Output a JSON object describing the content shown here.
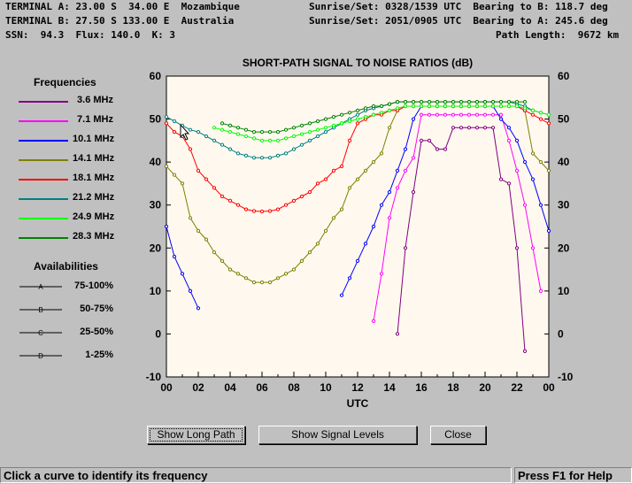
{
  "header": {
    "line1_left": "TERMINAL A: 23.00 S  34.00 E  Mozambique",
    "line2_left": "TERMINAL B: 27.50 S 133.00 E  Australia",
    "line3_left": "SSN:  94.3  Flux: 140.0  K: 3",
    "line1_right": "Sunrise/Set: 0328/1539 UTC  Bearing to B: 118.7 deg",
    "line2_right": "Sunrise/Set: 2051/0905 UTC  Bearing to A: 245.6 deg",
    "line3_right": "Path Length:  9672 km"
  },
  "legend": {
    "frequencies_title": "Frequencies",
    "availabilities_title": "Availabilities",
    "frequencies": [
      {
        "label": "3.6 MHz",
        "color": "#800080"
      },
      {
        "label": "7.1 MHz",
        "color": "#ff00ff"
      },
      {
        "label": "10.1 MHz",
        "color": "#0000ff"
      },
      {
        "label": "14.1 MHz",
        "color": "#808000"
      },
      {
        "label": "18.1 MHz",
        "color": "#ff0000"
      },
      {
        "label": "21.2 MHz",
        "color": "#008080"
      },
      {
        "label": "24.9 MHz",
        "color": "#00ff00"
      },
      {
        "label": "28.3 MHz",
        "color": "#008000"
      }
    ],
    "availabilities": [
      {
        "label": "75-100%",
        "marker": "A"
      },
      {
        "label": "50-75%",
        "marker": "B"
      },
      {
        "label": "25-50%",
        "marker": "C"
      },
      {
        "label": "1-25%",
        "marker": "D"
      }
    ]
  },
  "buttons": {
    "long_path": "Show Long Path",
    "signal_levels": "Show Signal Levels",
    "close": "Close"
  },
  "status": {
    "left": "Click a curve to identify its frequency",
    "right": "Press F1 for Help"
  },
  "chart_data": {
    "type": "line",
    "title": "SHORT-PATH SIGNAL TO NOISE RATIOS (dB)",
    "xlabel": "UTC",
    "ylabel": "",
    "xlim": [
      0,
      24
    ],
    "ylim": [
      -10,
      60
    ],
    "x_ticks": [
      "00",
      "02",
      "04",
      "06",
      "08",
      "10",
      "12",
      "14",
      "16",
      "18",
      "20",
      "22",
      "00"
    ],
    "y_ticks": [
      -10,
      0,
      10,
      20,
      30,
      40,
      50,
      60
    ],
    "series": [
      {
        "name": "3.6 MHz",
        "color": "#800080",
        "x": [
          14.5,
          15,
          15.5,
          16,
          16.5,
          17,
          17.5,
          18,
          18.5,
          19,
          19.5,
          20,
          20.5,
          21,
          21.5,
          22,
          22.5
        ],
        "y": [
          0,
          20,
          33,
          45,
          45,
          43,
          43,
          48,
          48,
          48,
          48,
          48,
          48,
          36,
          35,
          20,
          -4
        ]
      },
      {
        "name": "7.1 MHz",
        "color": "#ff00ff",
        "x": [
          13,
          13.5,
          14,
          14.5,
          15,
          15.5,
          16,
          16.5,
          17,
          17.5,
          18,
          18.5,
          19,
          19.5,
          20,
          20.5,
          21,
          21.5,
          22,
          22.5,
          23,
          23.5
        ],
        "y": [
          3,
          14,
          27,
          34,
          38,
          41,
          51,
          51,
          51,
          51,
          51,
          51,
          51,
          51,
          51,
          51,
          51,
          45,
          38,
          30,
          20,
          10
        ]
      },
      {
        "name": "10.1 MHz",
        "color": "#0000ff",
        "x": [
          0,
          0.5,
          1,
          1.5,
          2,
          11,
          11.5,
          12,
          12.5,
          13,
          13.5,
          14,
          14.5,
          15,
          15.5,
          16,
          16.5,
          17,
          17.5,
          18,
          18.5,
          19,
          19.5,
          20,
          20.5,
          21,
          21.5,
          22,
          22.5,
          23,
          23.5,
          24
        ],
        "y": [
          25,
          18,
          14,
          10,
          6,
          9,
          13,
          17,
          21,
          25,
          30,
          33,
          38,
          43,
          50,
          53,
          53,
          53,
          53,
          53,
          53,
          53,
          53,
          53,
          53,
          50,
          48,
          45,
          40,
          36,
          30,
          24
        ]
      },
      {
        "name": "14.1 MHz",
        "color": "#808000",
        "x": [
          0,
          0.5,
          1,
          1.5,
          2,
          2.5,
          3,
          3.5,
          4,
          4.5,
          5,
          5.5,
          6,
          6.5,
          7,
          7.5,
          8,
          8.5,
          9,
          9.5,
          10,
          10.5,
          11,
          11.5,
          12,
          12.5,
          13,
          13.5,
          14,
          14.5,
          15,
          15.5,
          16,
          16.5,
          17,
          17.5,
          18,
          18.5,
          19,
          19.5,
          20,
          20.5,
          21,
          21.5,
          22,
          22.5,
          23,
          23.5,
          24
        ],
        "y": [
          39,
          37,
          35,
          27,
          24,
          22,
          19,
          17,
          15,
          14,
          13,
          12,
          12,
          12,
          13,
          14,
          15,
          17,
          19,
          21,
          24,
          27,
          29,
          34,
          36,
          38,
          40,
          42,
          48,
          52,
          53,
          53,
          53,
          53,
          53,
          53,
          53,
          53,
          53,
          53,
          53,
          53,
          53,
          53,
          53,
          52,
          42,
          40,
          38
        ]
      },
      {
        "name": "18.1 MHz",
        "color": "#ff0000",
        "x": [
          0,
          0.5,
          1,
          1.5,
          2,
          2.5,
          3,
          3.5,
          4,
          4.5,
          5,
          5.5,
          6,
          6.5,
          7,
          7.5,
          8,
          8.5,
          9,
          9.5,
          10,
          10.5,
          11,
          11.5,
          12,
          12.5,
          13,
          13.5,
          14,
          14.5,
          15,
          15.5,
          16,
          16.5,
          17,
          17.5,
          18,
          18.5,
          19,
          19.5,
          20,
          20.5,
          21,
          21.5,
          22,
          22.5,
          23,
          23.5,
          24
        ],
        "y": [
          49,
          47,
          46,
          43,
          38,
          36,
          34,
          32,
          31,
          30,
          29,
          28.6,
          28.5,
          28.6,
          29,
          30,
          31,
          32,
          33,
          35,
          36,
          38,
          39,
          45,
          49,
          50,
          51,
          51,
          52,
          52,
          53,
          53,
          53,
          53,
          53,
          53,
          53,
          53,
          53,
          53,
          53,
          53,
          53,
          53,
          53,
          52,
          51,
          50,
          49
        ]
      },
      {
        "name": "21.2 MHz",
        "color": "#008080",
        "x": [
          0,
          0.5,
          1,
          1.5,
          2,
          2.5,
          3,
          3.5,
          4,
          4.5,
          5,
          5.5,
          6,
          6.5,
          7,
          7.5,
          8,
          8.5,
          9,
          9.5,
          10,
          10.5,
          11,
          11.5,
          12,
          12.5,
          13,
          13.5,
          14,
          14.5,
          15,
          15.5,
          16,
          16.5,
          17,
          17.5,
          18,
          18.5,
          19,
          19.5,
          20,
          20.5,
          21,
          21.5,
          22,
          22.5,
          23,
          23.5,
          24
        ],
        "y": [
          50.5,
          49.5,
          48.5,
          47.5,
          47,
          46,
          45,
          44,
          43,
          42,
          41.5,
          41,
          41,
          41,
          41.5,
          42,
          43,
          44,
          45,
          46,
          47,
          48,
          49,
          50,
          51,
          52,
          52.5,
          53,
          53.5,
          54,
          54,
          54,
          54,
          54,
          54,
          54,
          54,
          54,
          54,
          54,
          54,
          54,
          54,
          54,
          53.5,
          53,
          52,
          51.5,
          51
        ]
      },
      {
        "name": "24.9 MHz",
        "color": "#00ff00",
        "x": [
          3,
          3.5,
          4,
          4.5,
          5,
          5.5,
          6,
          6.5,
          7,
          7.5,
          8,
          8.5,
          9,
          9.5,
          10,
          10.5,
          11,
          11.5,
          12,
          12.5,
          13,
          13.5,
          14,
          14.5,
          15,
          15.5,
          16,
          16.5,
          17,
          17.5,
          18,
          18.5,
          19,
          19.5,
          20,
          20.5,
          21,
          21.5,
          22,
          22.5,
          23,
          23.5,
          24
        ],
        "y": [
          48,
          47.5,
          47,
          46.5,
          46,
          45.5,
          45,
          45,
          45,
          45.5,
          46,
          46.5,
          47,
          47.5,
          48,
          48.5,
          49,
          49.5,
          50,
          50.5,
          51,
          51.5,
          52,
          52.5,
          53,
          53,
          53,
          53,
          53,
          53,
          53,
          53,
          53,
          53,
          53,
          53,
          53,
          53,
          53,
          52.5,
          52,
          51.5,
          51
        ]
      },
      {
        "name": "28.3 MHz",
        "color": "#008000",
        "x": [
          3.5,
          4,
          4.5,
          5,
          5.5,
          6,
          6.5,
          7,
          7.5,
          8,
          8.5,
          9,
          9.5,
          10,
          10.5,
          11,
          11.5,
          12,
          12.5,
          13,
          13.5,
          14,
          14.5,
          15,
          15.5,
          16,
          16.5,
          17,
          17.5,
          18,
          18.5,
          19,
          19.5,
          20,
          20.5,
          21,
          21.5,
          22,
          22.5
        ],
        "y": [
          49,
          48.5,
          48,
          47.5,
          47,
          47,
          47,
          47,
          47.5,
          48,
          48.5,
          49,
          49.5,
          50,
          50.5,
          51,
          51.5,
          52,
          52.5,
          53,
          53,
          53.5,
          54,
          54,
          54,
          54,
          54,
          54,
          54,
          54,
          54,
          54,
          54,
          54,
          54,
          54,
          54,
          54,
          54
        ]
      }
    ]
  }
}
